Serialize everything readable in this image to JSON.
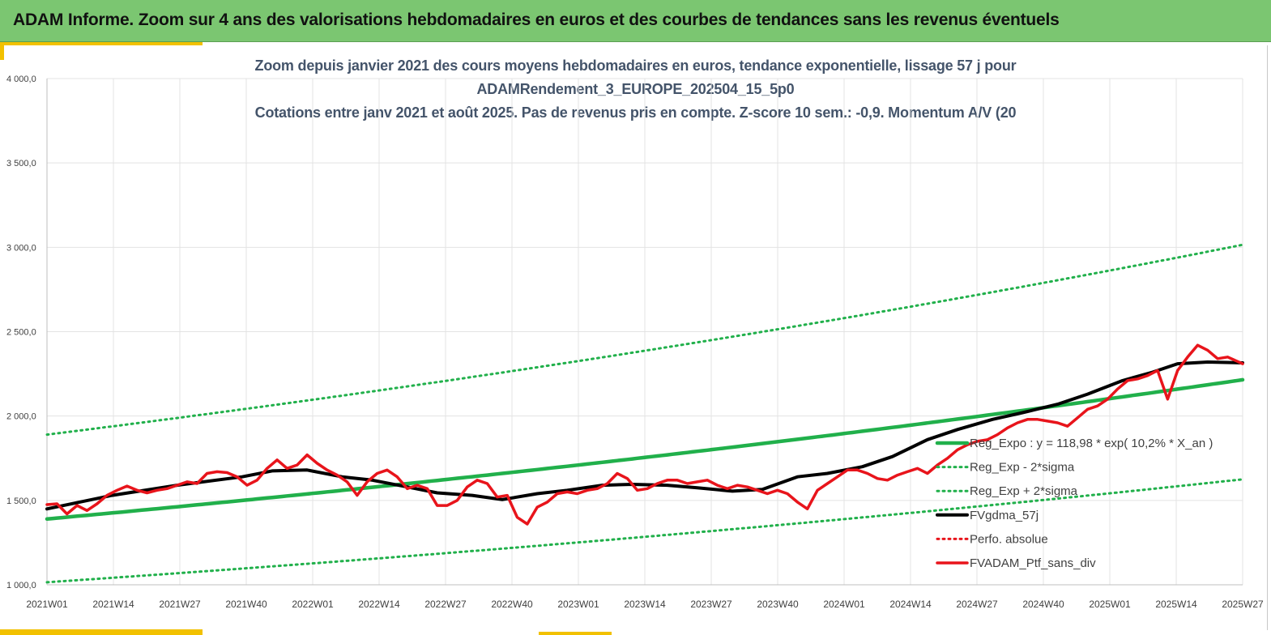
{
  "header": {
    "title": "ADAM Informe. Zoom sur 4 ans des valorisations hebdomadaires en euros et des courbes de tendances sans les revenus éventuels"
  },
  "colors": {
    "banner": "#7bc671",
    "accent": "#f2c100",
    "trend": "#21b04b",
    "smooth": "#000000",
    "portfolio": "#e8141b",
    "perfo": "#e8141b",
    "title_text": "#44546a"
  },
  "chart_data": {
    "type": "line",
    "title_lines": [
      "Zoom depuis janvier 2021 des cours moyens hebdomadaires  en euros, tendance exponentielle, lissage 57 j pour",
      "ADAMRendement_3_EUROPE_202504_15_5p0",
      "Cotations  entre janv 2021 et août 2025. Pas de revenus pris en compte. Z-score 10 sem.: -0,9. Momentum  A/V (20"
    ],
    "xlabel": "",
    "ylabel": "",
    "ylim": [
      1000,
      4000
    ],
    "yticks": [
      "4 000,0",
      "3 500,0",
      "3 000,0",
      "2 500,0",
      "2 000,0",
      "1 500,0",
      "1 000,0"
    ],
    "ytick_values": [
      4000,
      3500,
      3000,
      2500,
      2000,
      1500,
      1000
    ],
    "x_categories": [
      "2021W01",
      "2021W14",
      "2021W27",
      "2021W40",
      "2022W01",
      "2022W14",
      "2022W27",
      "2022W40",
      "2023W01",
      "2023W14",
      "2023W27",
      "2023W40",
      "2024W01",
      "2024W14",
      "2024W27",
      "2024W40",
      "2025W01",
      "2025W14",
      "2025W27"
    ],
    "week_range": [
      0,
      239
    ],
    "grid": true,
    "legend_position": "bottom-right",
    "series": [
      {
        "name": "Reg_Expo : y = 118,98 * exp( 10,2% *  X_an )",
        "style": "solid-green",
        "x": [
          0,
          239
        ],
        "values": [
          1390,
          2215
        ],
        "curve": "exponential"
      },
      {
        "name": "Reg_Exp - 2*sigma",
        "style": "dotted-green",
        "x": [
          0,
          239
        ],
        "values": [
          1015,
          1625
        ],
        "curve": "exponential"
      },
      {
        "name": "Reg_Exp + 2*sigma",
        "style": "dotted-green",
        "x": [
          0,
          239
        ],
        "values": [
          1890,
          3015
        ],
        "curve": "exponential"
      },
      {
        "name": "FVgdma_57j",
        "style": "solid-black",
        "x": [
          0,
          13,
          26,
          39,
          45,
          52,
          59,
          65,
          72,
          78,
          85,
          91,
          98,
          104,
          111,
          117,
          124,
          130,
          137,
          143,
          150,
          156,
          163,
          169,
          176,
          182,
          189,
          195,
          202,
          208,
          215,
          221,
          226,
          232,
          239
        ],
        "values": [
          1450,
          1530,
          1590,
          1640,
          1675,
          1680,
          1640,
          1620,
          1580,
          1545,
          1530,
          1505,
          1540,
          1560,
          1590,
          1595,
          1590,
          1575,
          1555,
          1565,
          1640,
          1660,
          1700,
          1760,
          1860,
          1920,
          1980,
          2020,
          2070,
          2130,
          2210,
          2260,
          2310,
          2320,
          2315
        ]
      },
      {
        "name": "Perfo. absolue",
        "style": "dotted-red",
        "x": [],
        "values": []
      },
      {
        "name": "FVADAM_Ptf_sans_div",
        "style": "solid-red",
        "x": [
          0,
          2,
          4,
          6,
          8,
          10,
          12,
          14,
          16,
          18,
          20,
          22,
          24,
          26,
          28,
          30,
          32,
          34,
          36,
          38,
          40,
          42,
          44,
          46,
          48,
          50,
          52,
          54,
          56,
          58,
          60,
          62,
          64,
          66,
          68,
          70,
          72,
          74,
          76,
          78,
          80,
          82,
          84,
          86,
          88,
          90,
          92,
          94,
          96,
          98,
          100,
          102,
          104,
          106,
          108,
          110,
          112,
          114,
          116,
          118,
          120,
          122,
          124,
          126,
          128,
          130,
          132,
          134,
          136,
          138,
          140,
          142,
          144,
          146,
          148,
          150,
          152,
          154,
          156,
          158,
          160,
          162,
          164,
          166,
          168,
          170,
          172,
          174,
          176,
          178,
          180,
          182,
          184,
          186,
          188,
          190,
          192,
          194,
          196,
          198,
          200,
          202,
          204,
          206,
          208,
          210,
          212,
          214,
          216,
          218,
          220,
          222,
          224,
          226,
          228,
          230,
          232,
          234,
          236,
          239
        ],
        "values": [
          1475,
          1480,
          1420,
          1470,
          1440,
          1480,
          1530,
          1560,
          1585,
          1560,
          1545,
          1560,
          1570,
          1590,
          1610,
          1600,
          1660,
          1670,
          1665,
          1640,
          1590,
          1620,
          1690,
          1740,
          1690,
          1710,
          1770,
          1720,
          1680,
          1650,
          1610,
          1530,
          1610,
          1660,
          1680,
          1640,
          1570,
          1590,
          1570,
          1470,
          1470,
          1500,
          1580,
          1620,
          1600,
          1520,
          1530,
          1400,
          1360,
          1460,
          1490,
          1540,
          1550,
          1540,
          1560,
          1570,
          1600,
          1660,
          1630,
          1560,
          1570,
          1600,
          1620,
          1620,
          1600,
          1610,
          1620,
          1590,
          1570,
          1590,
          1580,
          1560,
          1540,
          1560,
          1540,
          1490,
          1450,
          1560,
          1600,
          1640,
          1680,
          1680,
          1660,
          1630,
          1620,
          1650,
          1670,
          1690,
          1660,
          1710,
          1750,
          1800,
          1830,
          1850,
          1860,
          1890,
          1930,
          1960,
          1980,
          1980,
          1970,
          1960,
          1940,
          1990,
          2040,
          2060,
          2100,
          2160,
          2210,
          2220,
          2240,
          2270,
          2100,
          2270,
          2350,
          2420,
          2390,
          2340,
          2350,
          2310
        ]
      }
    ]
  }
}
